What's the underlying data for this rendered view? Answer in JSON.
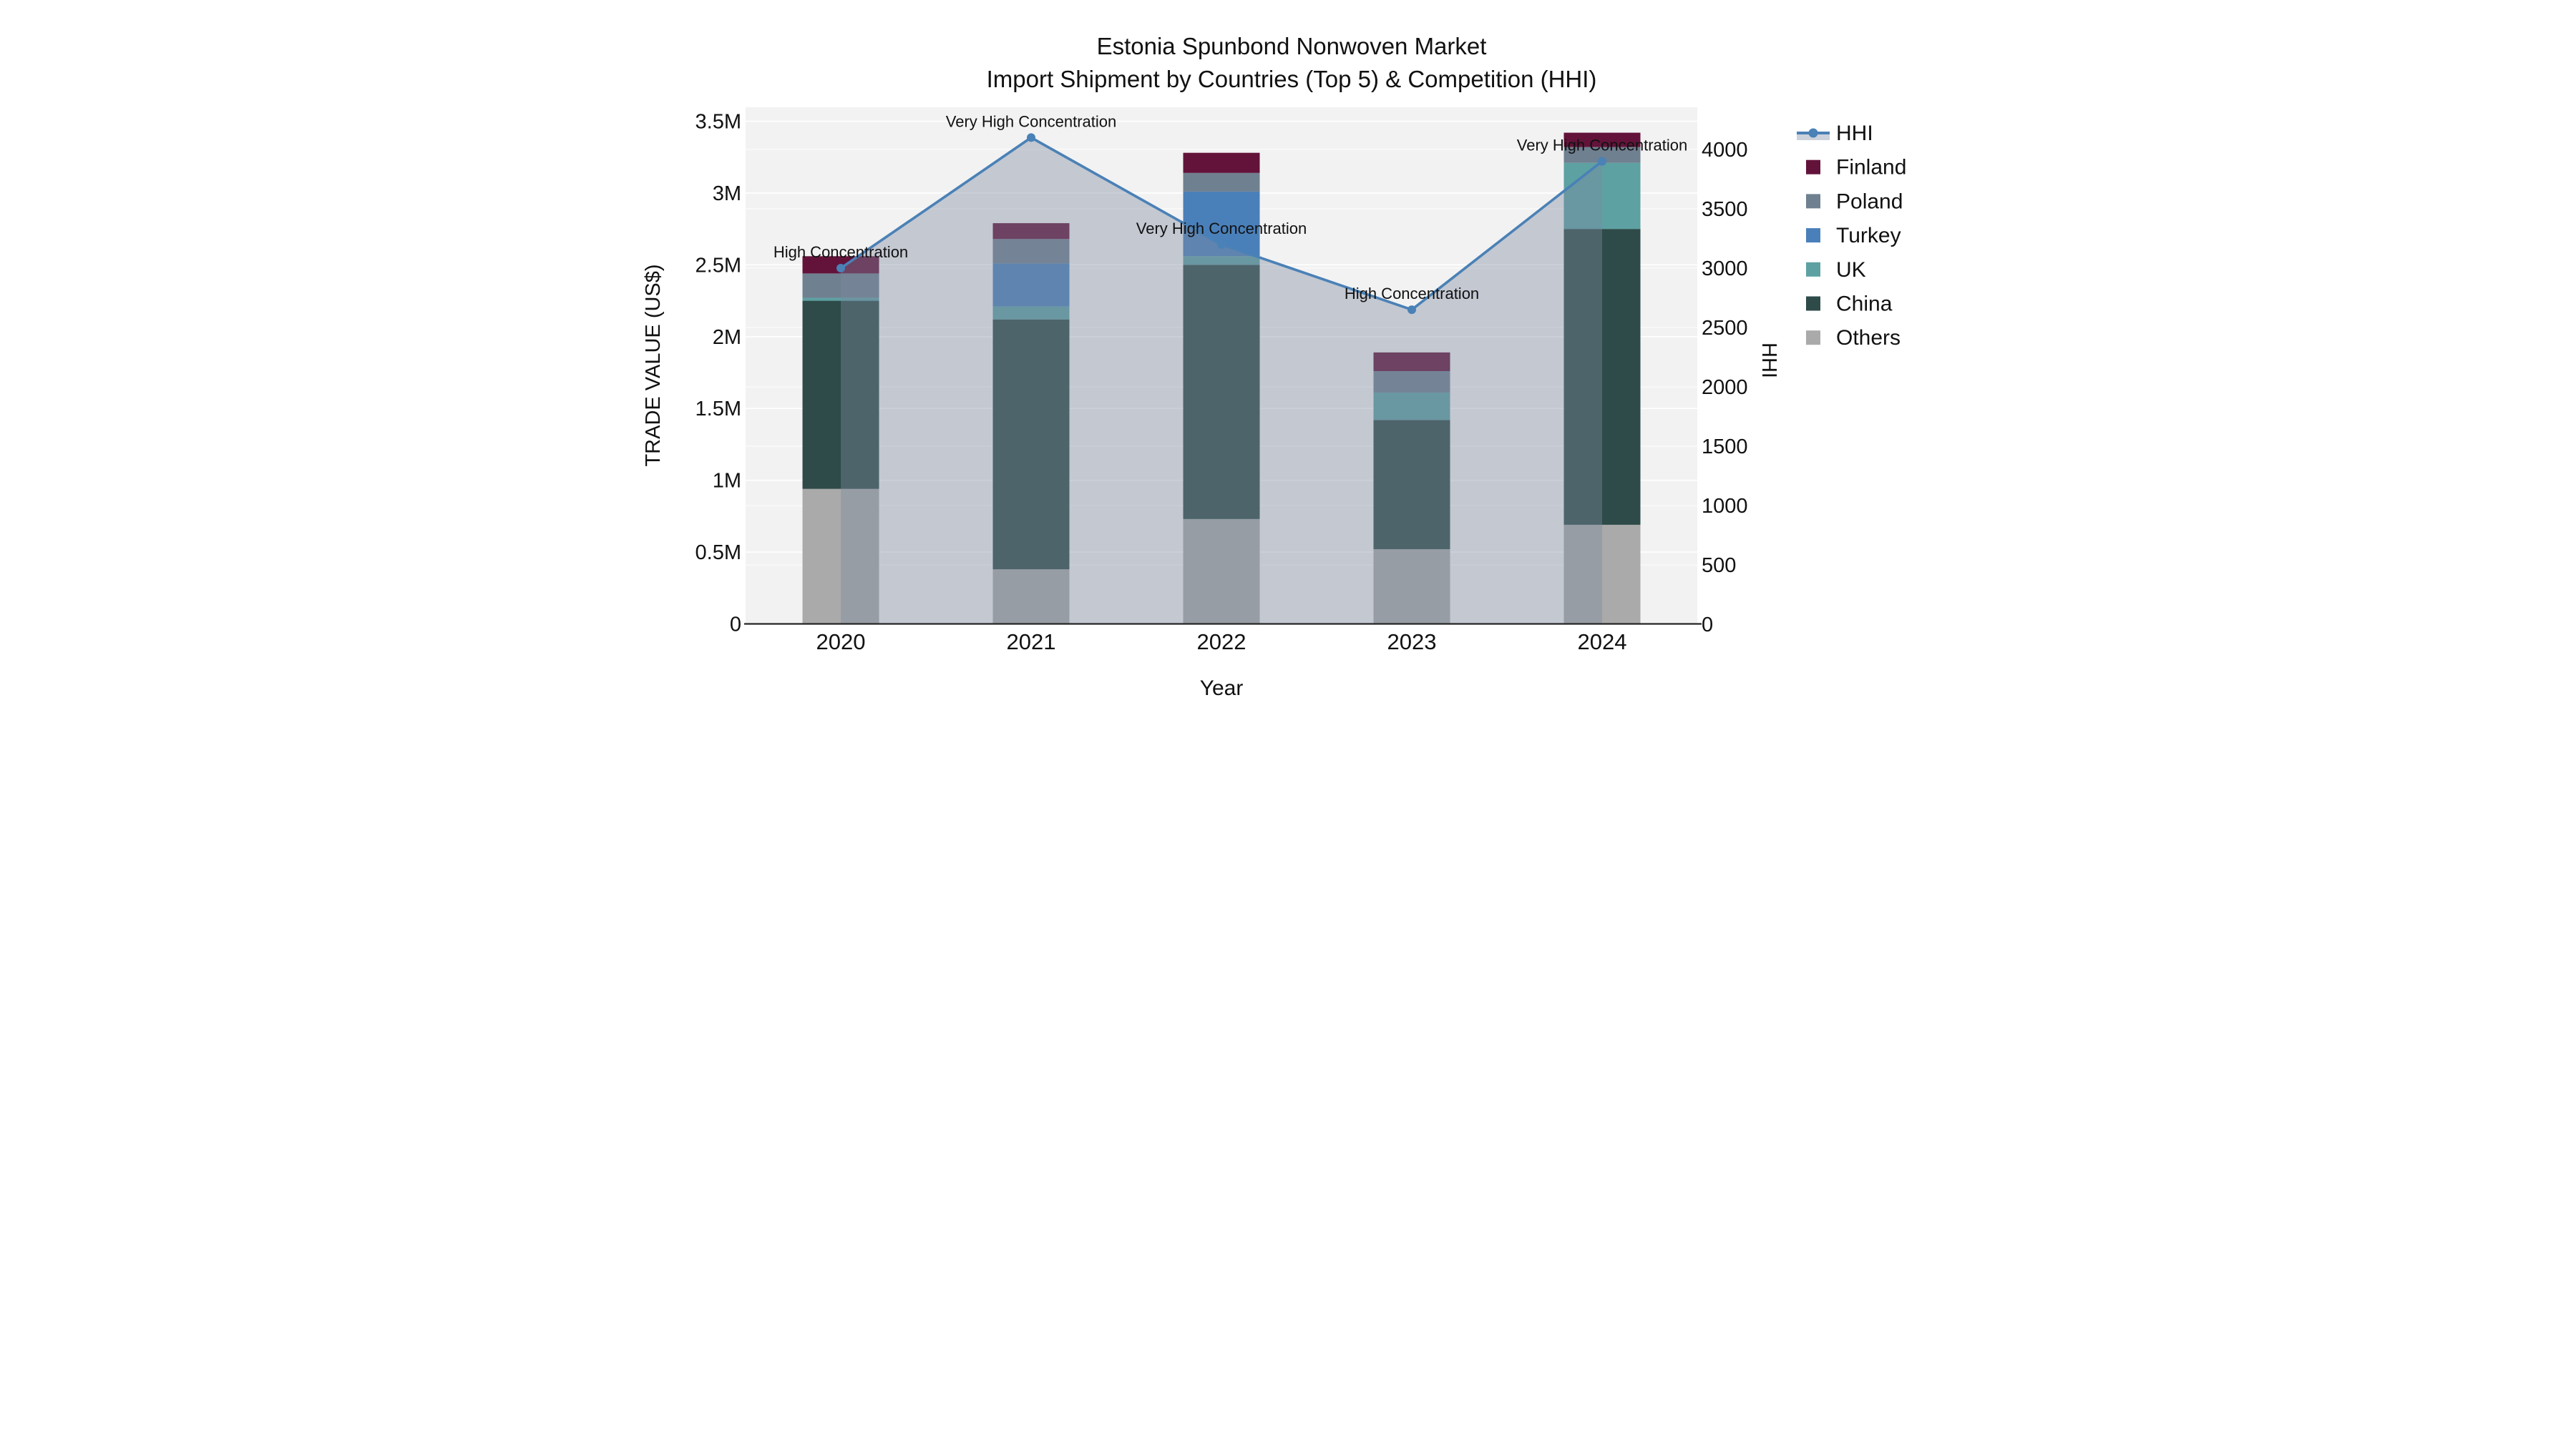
{
  "title": {
    "line1": "Estonia Spunbond Nonwoven Market",
    "line2": "Import Shipment by Countries (Top 5) & Competition (HHI)"
  },
  "axis_x": {
    "title": "Year",
    "tick_labels": [
      "2020",
      "2021",
      "2022",
      "2023",
      "2024"
    ]
  },
  "axis_left": {
    "title": "TRADE VALUE (US$)",
    "ticks": [
      {
        "value": 0,
        "label": "0"
      },
      {
        "value": 500000,
        "label": "0.5M"
      },
      {
        "value": 1000000,
        "label": "1M"
      },
      {
        "value": 1500000,
        "label": "1.5M"
      },
      {
        "value": 2000000,
        "label": "2M"
      },
      {
        "value": 2500000,
        "label": "2.5M"
      },
      {
        "value": 3000000,
        "label": "3M"
      },
      {
        "value": 3500000,
        "label": "3.5M"
      }
    ]
  },
  "axis_right": {
    "title": "HHI",
    "ticks": [
      {
        "value": 0,
        "label": "0"
      },
      {
        "value": 500,
        "label": "500"
      },
      {
        "value": 1000,
        "label": "1000"
      },
      {
        "value": 1500,
        "label": "1500"
      },
      {
        "value": 2000,
        "label": "2000"
      },
      {
        "value": 2500,
        "label": "2500"
      },
      {
        "value": 3000,
        "label": "3000"
      },
      {
        "value": 3500,
        "label": "3500"
      },
      {
        "value": 4000,
        "label": "4000"
      }
    ]
  },
  "legend": {
    "items": [
      {
        "label": "HHI",
        "swatch": "line-marker",
        "color": "#4a81b6"
      },
      {
        "label": "Finland",
        "swatch": "square",
        "color": "#63133a"
      },
      {
        "label": "Poland",
        "swatch": "square",
        "color": "#6f8090"
      },
      {
        "label": "Turkey",
        "swatch": "square",
        "color": "#4a80ba"
      },
      {
        "label": "UK",
        "swatch": "square",
        "color": "#5da1a3"
      },
      {
        "label": "China",
        "swatch": "square",
        "color": "#2e4b49"
      },
      {
        "label": "Others",
        "swatch": "square",
        "color": "#a9aaa9"
      }
    ]
  },
  "chart_data": {
    "type": "combo-stacked-bar-line-dual-axis",
    "categories": [
      "2020",
      "2021",
      "2022",
      "2023",
      "2024"
    ],
    "bar_stack_order_bottom_to_top": [
      "Others",
      "China",
      "UK",
      "Turkey",
      "Poland",
      "Finland"
    ],
    "series": [
      {
        "name": "Others",
        "type": "bar",
        "color": "#a9aaa9",
        "values_usd": [
          940000,
          380000,
          730000,
          520000,
          690000
        ]
      },
      {
        "name": "China",
        "type": "bar",
        "color": "#2e4b49",
        "values_usd": [
          1310000,
          1740000,
          1770000,
          900000,
          2060000
        ]
      },
      {
        "name": "UK",
        "type": "bar",
        "color": "#5da1a3",
        "values_usd": [
          20000,
          90000,
          60000,
          190000,
          460000
        ]
      },
      {
        "name": "Turkey",
        "type": "bar",
        "color": "#4a80ba",
        "values_usd": [
          0,
          300000,
          450000,
          0,
          0
        ]
      },
      {
        "name": "Poland",
        "type": "bar",
        "color": "#6f8090",
        "values_usd": [
          170000,
          170000,
          130000,
          150000,
          110000
        ]
      },
      {
        "name": "Finland",
        "type": "bar",
        "color": "#63133a",
        "values_usd": [
          120000,
          110000,
          140000,
          130000,
          100000
        ]
      }
    ],
    "line_series": {
      "name": "HHI",
      "color": "#4a81b6",
      "area_fill_color": "rgba(125,137,160,0.40)",
      "values": [
        3000,
        4100,
        3200,
        2650,
        3900
      ]
    },
    "annotations": [
      {
        "category": "2020",
        "text": "High Concentration"
      },
      {
        "category": "2021",
        "text": "Very High Concentration"
      },
      {
        "category": "2022",
        "text": "Very High Concentration"
      },
      {
        "category": "2023",
        "text": "High Concentration"
      },
      {
        "category": "2024",
        "text": "Very High Concentration"
      }
    ],
    "ylim_left_usd": [
      0,
      3500000
    ],
    "ylim_right_hhi": [
      0,
      4000
    ],
    "grid": true,
    "plot_bg_color": "#f2f2f2",
    "legend_position": "right"
  }
}
